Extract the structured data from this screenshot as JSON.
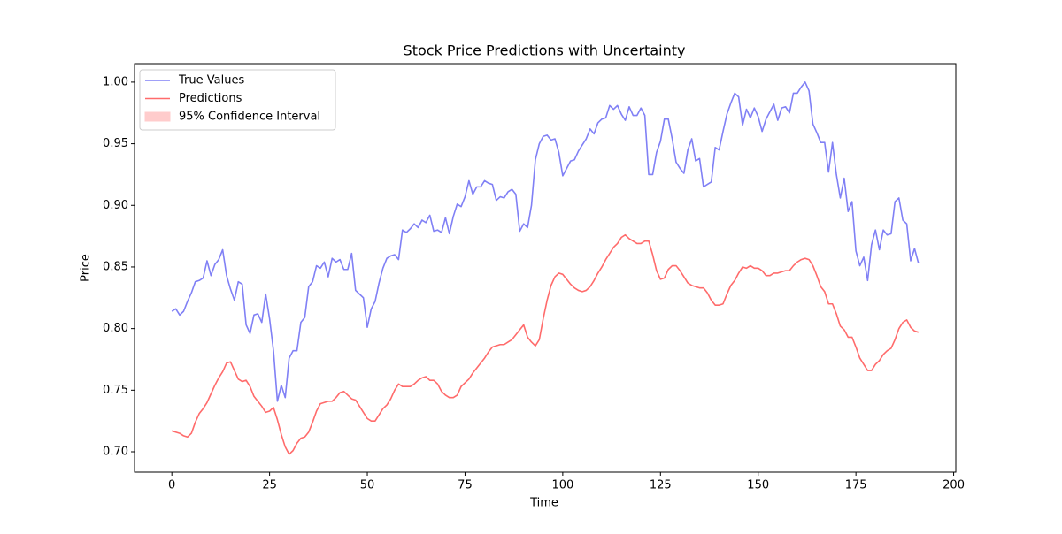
{
  "chart_data": {
    "type": "line",
    "title": "Stock Price Predictions with Uncertainty",
    "x_label": "Time",
    "y_label": "Price",
    "legend": "upper left",
    "xlim": [
      -9.55,
      200.55
    ],
    "ylim": [
      0.6835,
      1.015
    ],
    "xticks": [
      0,
      25,
      50,
      75,
      100,
      125,
      150,
      175,
      200
    ],
    "yticks": [
      {
        "value": 0.7,
        "label": "0.70"
      },
      0.75,
      {
        "value": 0.8,
        "label": "0.80"
      },
      0.85,
      {
        "value": 0.9,
        "label": "0.90"
      },
      0.95,
      {
        "value": 1.0,
        "label": "1.00"
      }
    ],
    "x": [
      0,
      1,
      2,
      3,
      4,
      5,
      6,
      7,
      8,
      9,
      10,
      11,
      12,
      13,
      14,
      15,
      16,
      17,
      18,
      19,
      20,
      21,
      22,
      23,
      24,
      25,
      26,
      27,
      28,
      29,
      30,
      31,
      32,
      33,
      34,
      35,
      36,
      37,
      38,
      39,
      40,
      41,
      42,
      43,
      44,
      45,
      46,
      47,
      48,
      49,
      50,
      51,
      52,
      53,
      54,
      55,
      56,
      57,
      58,
      59,
      60,
      61,
      62,
      63,
      64,
      65,
      66,
      67,
      68,
      69,
      70,
      71,
      72,
      73,
      74,
      75,
      76,
      77,
      78,
      79,
      80,
      81,
      82,
      83,
      84,
      85,
      86,
      87,
      88,
      89,
      90,
      91,
      92,
      93,
      94,
      95,
      96,
      97,
      98,
      99,
      100,
      101,
      102,
      103,
      104,
      105,
      106,
      107,
      108,
      109,
      110,
      111,
      112,
      113,
      114,
      115,
      116,
      117,
      118,
      119,
      120,
      121,
      122,
      123,
      124,
      125,
      126,
      127,
      128,
      129,
      130,
      131,
      132,
      133,
      134,
      135,
      136,
      137,
      138,
      139,
      140,
      141,
      142,
      143,
      144,
      145,
      146,
      147,
      148,
      149,
      150,
      151,
      152,
      153,
      154,
      155,
      156,
      157,
      158,
      159,
      160,
      161,
      162,
      163,
      164,
      165,
      166,
      167,
      168,
      169,
      170,
      171,
      172,
      173,
      174,
      175,
      176,
      177,
      178,
      179,
      180,
      181,
      182,
      183,
      184,
      185,
      186,
      187,
      188,
      189,
      190,
      191
    ],
    "series": [
      {
        "name": "True Values",
        "color": "#8080f5",
        "values": [
          0.814,
          0.816,
          0.811,
          0.814,
          0.822,
          0.829,
          0.838,
          0.839,
          0.841,
          0.855,
          0.843,
          0.852,
          0.856,
          0.864,
          0.843,
          0.832,
          0.823,
          0.838,
          0.836,
          0.803,
          0.796,
          0.811,
          0.812,
          0.805,
          0.828,
          0.808,
          0.782,
          0.741,
          0.754,
          0.744,
          0.776,
          0.782,
          0.782,
          0.805,
          0.809,
          0.834,
          0.838,
          0.851,
          0.849,
          0.854,
          0.842,
          0.857,
          0.854,
          0.856,
          0.848,
          0.848,
          0.861,
          0.831,
          0.828,
          0.825,
          0.801,
          0.816,
          0.822,
          0.837,
          0.849,
          0.857,
          0.859,
          0.86,
          0.856,
          0.88,
          0.878,
          0.881,
          0.885,
          0.882,
          0.888,
          0.886,
          0.892,
          0.879,
          0.88,
          0.878,
          0.89,
          0.877,
          0.891,
          0.901,
          0.899,
          0.907,
          0.92,
          0.909,
          0.915,
          0.915,
          0.92,
          0.918,
          0.917,
          0.904,
          0.907,
          0.906,
          0.911,
          0.913,
          0.909,
          0.879,
          0.885,
          0.882,
          0.9,
          0.937,
          0.95,
          0.956,
          0.957,
          0.953,
          0.954,
          0.943,
          0.924,
          0.93,
          0.936,
          0.937,
          0.944,
          0.949,
          0.954,
          0.962,
          0.958,
          0.967,
          0.97,
          0.971,
          0.981,
          0.978,
          0.981,
          0.974,
          0.969,
          0.98,
          0.973,
          0.973,
          0.979,
          0.973,
          0.925,
          0.925,
          0.943,
          0.952,
          0.97,
          0.97,
          0.954,
          0.935,
          0.93,
          0.926,
          0.945,
          0.954,
          0.936,
          0.938,
          0.915,
          0.917,
          0.919,
          0.947,
          0.945,
          0.96,
          0.974,
          0.983,
          0.991,
          0.988,
          0.965,
          0.978,
          0.971,
          0.979,
          0.972,
          0.96,
          0.97,
          0.976,
          0.982,
          0.969,
          0.979,
          0.98,
          0.975,
          0.991,
          0.991,
          0.996,
          1.0,
          0.993,
          0.966,
          0.959,
          0.951,
          0.951,
          0.927,
          0.951,
          0.925,
          0.906,
          0.922,
          0.895,
          0.903,
          0.863,
          0.851,
          0.858,
          0.839,
          0.868,
          0.88,
          0.864,
          0.88,
          0.876,
          0.877,
          0.903,
          0.906,
          0.888,
          0.885,
          0.855,
          0.865,
          0.853
        ]
      },
      {
        "name": "Predictions",
        "color": "#ff6b6b",
        "values": [
          0.717,
          0.716,
          0.715,
          0.713,
          0.712,
          0.715,
          0.724,
          0.731,
          0.735,
          0.74,
          0.747,
          0.754,
          0.76,
          0.765,
          0.772,
          0.773,
          0.766,
          0.759,
          0.757,
          0.758,
          0.753,
          0.745,
          0.741,
          0.737,
          0.732,
          0.733,
          0.736,
          0.726,
          0.714,
          0.704,
          0.698,
          0.701,
          0.707,
          0.711,
          0.712,
          0.716,
          0.724,
          0.733,
          0.739,
          0.74,
          0.741,
          0.741,
          0.744,
          0.748,
          0.749,
          0.746,
          0.743,
          0.742,
          0.737,
          0.732,
          0.727,
          0.725,
          0.725,
          0.73,
          0.735,
          0.738,
          0.743,
          0.75,
          0.755,
          0.753,
          0.753,
          0.753,
          0.755,
          0.758,
          0.76,
          0.761,
          0.758,
          0.758,
          0.755,
          0.749,
          0.746,
          0.744,
          0.744,
          0.746,
          0.753,
          0.756,
          0.759,
          0.764,
          0.768,
          0.772,
          0.776,
          0.781,
          0.785,
          0.786,
          0.787,
          0.787,
          0.789,
          0.791,
          0.795,
          0.799,
          0.803,
          0.793,
          0.789,
          0.786,
          0.791,
          0.808,
          0.823,
          0.835,
          0.842,
          0.845,
          0.844,
          0.84,
          0.836,
          0.833,
          0.831,
          0.83,
          0.831,
          0.834,
          0.839,
          0.845,
          0.85,
          0.856,
          0.861,
          0.866,
          0.869,
          0.874,
          0.876,
          0.873,
          0.871,
          0.869,
          0.869,
          0.871,
          0.871,
          0.86,
          0.847,
          0.84,
          0.841,
          0.848,
          0.851,
          0.851,
          0.847,
          0.842,
          0.837,
          0.835,
          0.834,
          0.833,
          0.833,
          0.829,
          0.823,
          0.819,
          0.819,
          0.82,
          0.828,
          0.835,
          0.839,
          0.845,
          0.85,
          0.849,
          0.851,
          0.849,
          0.849,
          0.847,
          0.843,
          0.843,
          0.845,
          0.845,
          0.846,
          0.847,
          0.847,
          0.851,
          0.854,
          0.856,
          0.857,
          0.856,
          0.851,
          0.843,
          0.834,
          0.83,
          0.82,
          0.82,
          0.812,
          0.802,
          0.799,
          0.793,
          0.793,
          0.785,
          0.776,
          0.771,
          0.766,
          0.766,
          0.771,
          0.774,
          0.779,
          0.782,
          0.784,
          0.791,
          0.8,
          0.805,
          0.807,
          0.801,
          0.798,
          0.797
        ]
      },
      {
        "name": "95% Confidence Interval",
        "color": "#ffcccc"
      }
    ]
  }
}
